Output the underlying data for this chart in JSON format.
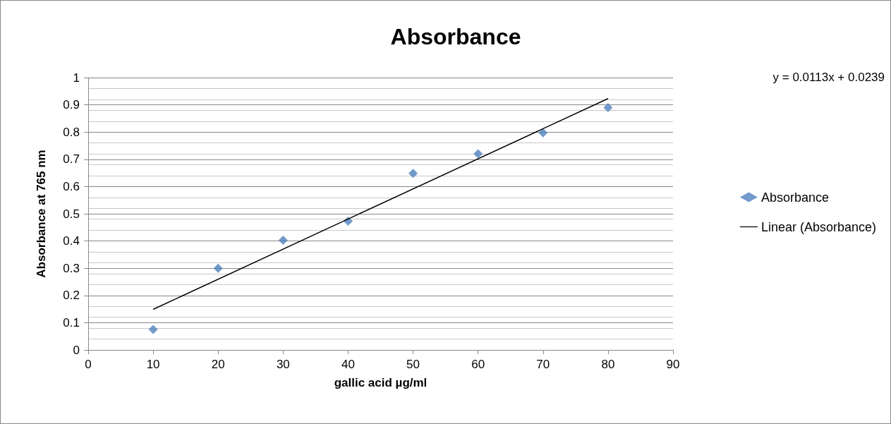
{
  "chart_data": {
    "type": "scatter",
    "title": "Absorbance",
    "xlabel": "gallic acid µg/ml",
    "ylabel": "Absorbance at 765 nm",
    "x": [
      10,
      20,
      30,
      40,
      50,
      60,
      70,
      80
    ],
    "series": [
      {
        "name": "Absorbance",
        "color": "#4f81bd",
        "marker": "diamond",
        "values": [
          0.075,
          0.3,
          0.403,
          0.473,
          0.648,
          0.72,
          0.797,
          0.89
        ]
      },
      {
        "name": "Linear (Absorbance)",
        "type": "line",
        "color": "#000000",
        "marker": "none",
        "x": [
          10,
          80
        ],
        "values": [
          0.149,
          0.923
        ]
      }
    ],
    "xlim": [
      0,
      90
    ],
    "xticks": [
      0,
      10,
      20,
      30,
      40,
      50,
      60,
      70,
      80,
      90
    ],
    "ylim": [
      0,
      1
    ],
    "yticks": [
      0,
      0.1,
      0.2,
      0.3,
      0.4,
      0.5,
      0.6,
      0.7,
      0.8,
      0.9,
      1
    ],
    "grid": "y",
    "legend": "right",
    "annotations": [
      "y = 0.0113x + 0.0239"
    ]
  }
}
